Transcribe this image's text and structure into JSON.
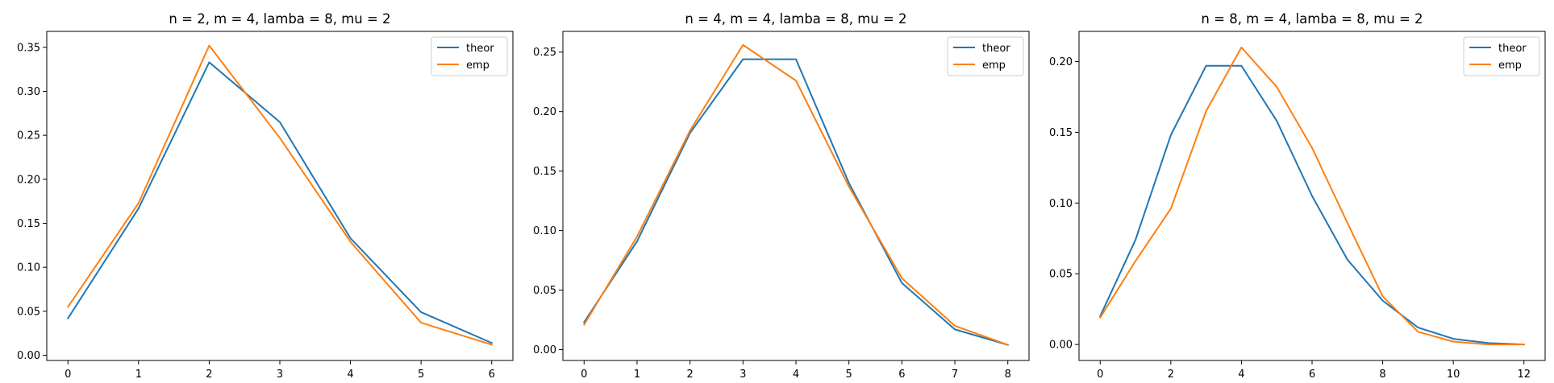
{
  "chart_data": [
    {
      "type": "line",
      "title": "n = 2, m = 4, lamba = 8, mu = 2",
      "xlabel": "",
      "ylabel": "",
      "x": [
        0,
        1,
        2,
        3,
        4,
        5,
        6
      ],
      "xticks": [
        0,
        1,
        2,
        3,
        4,
        5,
        6
      ],
      "yticks": [
        0.0,
        0.05,
        0.1,
        0.15,
        0.2,
        0.25,
        0.3,
        0.35
      ],
      "ytick_labels": [
        "0.00",
        "0.05",
        "0.10",
        "0.15",
        "0.20",
        "0.25",
        "0.30",
        "0.35"
      ],
      "xlim": [
        -0.3,
        6.3
      ],
      "ylim": [
        -0.0059,
        0.3681
      ],
      "grid": false,
      "legend_position": "upper right",
      "series": [
        {
          "name": "theor",
          "color": "#1f77b4",
          "values": [
            0.042,
            0.167,
            0.333,
            0.265,
            0.133,
            0.049,
            0.014
          ]
        },
        {
          "name": "emp",
          "color": "#ff7f0e",
          "values": [
            0.055,
            0.173,
            0.352,
            0.247,
            0.129,
            0.037,
            0.012
          ]
        }
      ]
    },
    {
      "type": "line",
      "title": "n = 4, m = 4, lamba = 8, mu = 2",
      "xlabel": "",
      "ylabel": "",
      "x": [
        0,
        1,
        2,
        3,
        4,
        5,
        6,
        7,
        8
      ],
      "xticks": [
        0,
        1,
        2,
        3,
        4,
        5,
        6,
        7,
        8
      ],
      "yticks": [
        0.0,
        0.05,
        0.1,
        0.15,
        0.2,
        0.25
      ],
      "ytick_labels": [
        "0.00",
        "0.05",
        "0.10",
        "0.15",
        "0.20",
        "0.25"
      ],
      "xlim": [
        -0.4,
        8.4
      ],
      "ylim": [
        -0.0091,
        0.2674
      ],
      "grid": false,
      "legend_position": "upper right",
      "series": [
        {
          "name": "theor",
          "color": "#1f77b4",
          "values": [
            0.023,
            0.091,
            0.182,
            0.244,
            0.244,
            0.14,
            0.056,
            0.017,
            0.004
          ]
        },
        {
          "name": "emp",
          "color": "#ff7f0e",
          "values": [
            0.021,
            0.095,
            0.184,
            0.256,
            0.226,
            0.137,
            0.06,
            0.02,
            0.004
          ]
        }
      ]
    },
    {
      "type": "line",
      "title": "n = 8, m = 4, lamba = 8, mu = 2",
      "xlabel": "",
      "ylabel": "",
      "x": [
        0,
        1,
        2,
        3,
        4,
        5,
        6,
        7,
        8,
        9,
        10,
        11,
        12
      ],
      "xticks": [
        0,
        2,
        4,
        6,
        8,
        10,
        12
      ],
      "yticks": [
        0.0,
        0.05,
        0.1,
        0.15,
        0.2
      ],
      "ytick_labels": [
        "0.00",
        "0.05",
        "0.10",
        "0.15",
        "0.20"
      ],
      "xlim": [
        -0.6,
        12.6
      ],
      "ylim": [
        -0.0113,
        0.2213
      ],
      "grid": false,
      "legend_position": "upper right",
      "series": [
        {
          "name": "theor",
          "color": "#1f77b4",
          "values": [
            0.02,
            0.074,
            0.148,
            0.197,
            0.197,
            0.158,
            0.105,
            0.06,
            0.031,
            0.012,
            0.004,
            0.001,
            0.0
          ]
        },
        {
          "name": "emp",
          "color": "#ff7f0e",
          "values": [
            0.019,
            0.059,
            0.096,
            0.165,
            0.21,
            0.182,
            0.139,
            0.086,
            0.034,
            0.009,
            0.002,
            0.0,
            0.0
          ]
        }
      ]
    }
  ]
}
